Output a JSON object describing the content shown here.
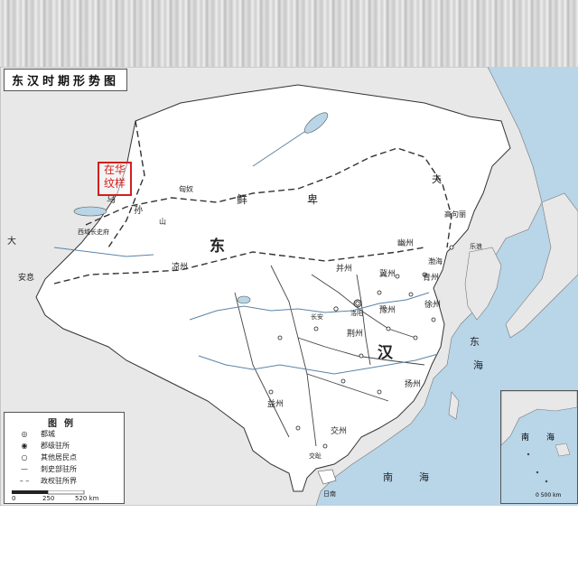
{
  "title": "东汉时期形势图",
  "labels": {
    "dong": "东",
    "han": "汉",
    "xianbei_1": "鲜",
    "xianbei_2": "卑",
    "wusun_1": "乌",
    "wusun_2": "孙",
    "fuyu": "夫",
    "gaojuli": "高句丽",
    "yuzhou": "豫州",
    "jingzhou": "荆州",
    "yangzhou": "扬州",
    "jiaozhou": "交州",
    "yizhou": "益州",
    "liangzhou": "凉州",
    "bingzhou": "并州",
    "youzhou": "幽州",
    "qingzhou": "青州",
    "xuzhou": "徐州",
    "jizhou": "冀州",
    "xiyu": "西域长史府",
    "luoyang": "洛阳",
    "changan": "长安",
    "nanhai_1": "南",
    "nanhai_2": "海",
    "donghai_1": "东",
    "donghai_2": "海",
    "bohai": "渤海",
    "dayuan": "大",
    "anxi": "安息",
    "shanxi": "山",
    "rinan": "日南",
    "jiaozhi": "交趾",
    "lelang": "乐浪",
    "xiongnu": "匈奴"
  },
  "legend": {
    "title": "图例",
    "items": [
      {
        "symbol": "◎",
        "label": "都城"
      },
      {
        "symbol": "◉",
        "label": "郡级驻所"
      },
      {
        "symbol": "○",
        "label": "其他居民点"
      },
      {
        "symbol": "—",
        "label": "刺史部驻所"
      },
      {
        "symbol": "– –",
        "label": "政权驻所界"
      }
    ],
    "scale": {
      "zero": "0",
      "mid": "250",
      "max": "520 km"
    }
  },
  "stamp": {
    "line1": "在华",
    "line2": "纹样"
  },
  "inset": {
    "label_1": "南",
    "label_2": "海",
    "scale": "0 500 km"
  },
  "colors": {
    "sea": "#b9d5e8",
    "land_outside": "#e8e8e8",
    "empire": "#ffffff",
    "border": "#333333",
    "stamp": "#d1201d"
  }
}
